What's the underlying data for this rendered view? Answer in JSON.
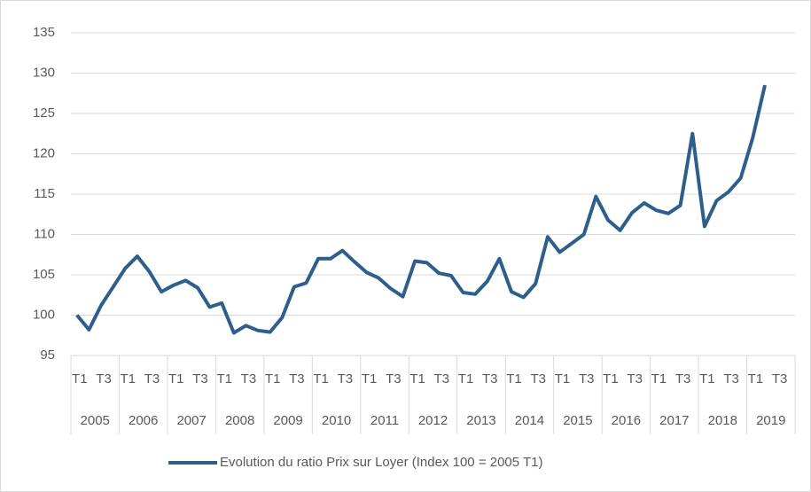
{
  "chart_data": {
    "type": "line",
    "categories": [
      "T1",
      null,
      "T3",
      null,
      "T1",
      null,
      "T3",
      null,
      "T1",
      null,
      "T3",
      null,
      "T1",
      null,
      "T3",
      null,
      "T1",
      null,
      "T3",
      null,
      "T1",
      null,
      "T3",
      null,
      "T1",
      null,
      "T3",
      null,
      "T1",
      null,
      "T3",
      null,
      "T1",
      null,
      "T3",
      null,
      "T1",
      null,
      "T3",
      null,
      "T1",
      null,
      "T3",
      null,
      "T1",
      null,
      "T3",
      null,
      "T1",
      null,
      "T3",
      null,
      "T1",
      null,
      "T3",
      null,
      "T1",
      null,
      "T3",
      null
    ],
    "groups": [
      "2005",
      "2006",
      "2007",
      "2008",
      "2009",
      "2010",
      "2011",
      "2012",
      "2013",
      "2014",
      "2015",
      "2016",
      "2017",
      "2018",
      "2019"
    ],
    "series": [
      {
        "name": "Evolution du ratio Prix sur Loyer (Index 100 = 2005 T1)",
        "color": "#2e5e8b",
        "values": [
          100,
          98.2,
          101.2,
          103.5,
          105.8,
          107.3,
          105.4,
          102.9,
          103.7,
          104.3,
          103.4,
          101.0,
          101.5,
          97.8,
          98.7,
          98.1,
          97.9,
          99.7,
          103.5,
          104.0,
          107.0,
          107.0,
          108.0,
          106.6,
          105.3,
          104.6,
          103.3,
          102.3,
          106.7,
          106.5,
          105.2,
          104.9,
          102.8,
          102.6,
          104.2,
          107.0,
          102.9,
          102.2,
          103.9,
          109.7,
          107.8,
          108.9,
          110.0,
          114.7,
          111.8,
          110.5,
          112.7,
          113.9,
          113.0,
          112.6,
          113.6,
          122.5,
          111.0,
          114.2,
          115.3,
          117.0,
          122.0,
          128.5,
          null,
          null
        ]
      }
    ],
    "ylim": [
      95,
      135
    ],
    "yticks": [
      95,
      100,
      105,
      110,
      115,
      120,
      125,
      130,
      135
    ],
    "grid": true,
    "legend": "bottom"
  }
}
